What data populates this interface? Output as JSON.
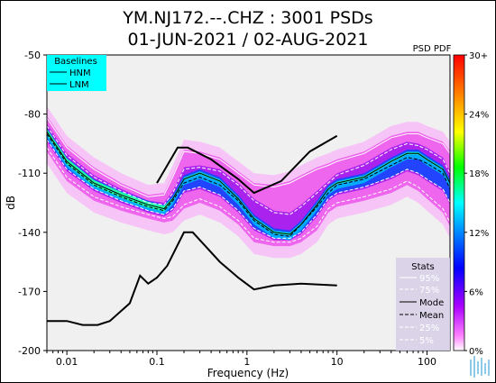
{
  "chart_data": {
    "type": "heatmap",
    "title": "YM.NJ172.--.CHZ : 3001 PSDs",
    "subtitle": "01-JUN-2021 / 02-AUG-2021",
    "xlabel": "Frequency (Hz)",
    "ylabel": "dB",
    "x_scale": "log",
    "xlim": [
      0.006,
      180
    ],
    "ylim": [
      -200,
      -50
    ],
    "x_ticks": [
      "0.01",
      "0.1",
      "1",
      "10",
      "100"
    ],
    "y_ticks": [
      "-50",
      "-80",
      "-110",
      "-140",
      "-170",
      "-200"
    ],
    "colorbar": {
      "title": "PSD PDF",
      "ticks": [
        "30+",
        "24%",
        "18%",
        "12%",
        "6%",
        "0%"
      ]
    },
    "baselines": {
      "title": "Baselines",
      "entries": [
        "HNM",
        "LNM"
      ],
      "legend_bg": "#00ffff",
      "hnm": {
        "x": [
          0.1,
          0.17,
          0.22,
          0.4,
          0.8,
          1.2,
          2.4,
          4.3,
          5,
          10
        ],
        "y": [
          -115,
          -97,
          -97,
          -103,
          -113,
          -120,
          -114,
          -102,
          -99,
          -91
        ]
      },
      "lnm": {
        "x": [
          0.006,
          0.01,
          0.015,
          0.022,
          0.03,
          0.05,
          0.065,
          0.08,
          0.1,
          0.13,
          0.2,
          0.25,
          0.33,
          0.5,
          0.8,
          1.2,
          2,
          4,
          10
        ],
        "y": [
          -185,
          -185,
          -187,
          -187,
          -185,
          -176,
          -162,
          -166,
          -163,
          -157,
          -140,
          -140,
          -146,
          -155,
          -163,
          -169,
          -167,
          -166,
          -167
        ]
      }
    },
    "stats": {
      "title": "Stats",
      "entries": [
        "95%",
        "75%",
        "Mode",
        "Mean",
        "25%",
        "5%"
      ]
    },
    "stat_curves": {
      "freq": [
        0.006,
        0.01,
        0.02,
        0.04,
        0.08,
        0.12,
        0.15,
        0.2,
        0.3,
        0.5,
        0.8,
        1.2,
        2,
        3,
        4,
        6,
        8,
        10,
        20,
        40,
        60,
        80,
        100,
        150,
        180
      ],
      "p95": [
        -82,
        -97,
        -108,
        -116,
        -122,
        -121,
        -112,
        -99,
        -100,
        -103,
        -110,
        -116,
        -117,
        -115,
        -112,
        -108,
        -106,
        -104,
        -100,
        -92,
        -90,
        -90,
        -92,
        -95,
        -100
      ],
      "p75": [
        -86,
        -101,
        -112,
        -119,
        -125,
        -126,
        -120,
        -108,
        -107,
        -109,
        -116,
        -124,
        -130,
        -131,
        -127,
        -120,
        -115,
        -111,
        -106,
        -98,
        -95,
        -96,
        -98,
        -103,
        -110
      ],
      "mode": [
        -89,
        -104,
        -115,
        -121,
        -126,
        -128,
        -123,
        -113,
        -110,
        -114,
        -123,
        -133,
        -140,
        -141,
        -136,
        -126,
        -118,
        -115,
        -112,
        -104,
        -100,
        -100,
        -103,
        -108,
        -115
      ],
      "mean": [
        -90,
        -105,
        -116,
        -122,
        -127,
        -129,
        -124,
        -115,
        -112,
        -116,
        -124,
        -134,
        -141,
        -142,
        -136,
        -127,
        -120,
        -116,
        -113,
        -106,
        -102,
        -103,
        -105,
        -110,
        -118
      ],
      "p25": [
        -93,
        -108,
        -118,
        -124,
        -129,
        -131,
        -128,
        -119,
        -117,
        -121,
        -129,
        -138,
        -143,
        -143,
        -140,
        -131,
        -123,
        -120,
        -117,
        -112,
        -108,
        -110,
        -113,
        -118,
        -125
      ],
      "p5": [
        -97,
        -112,
        -122,
        -127,
        -131,
        -133,
        -132,
        -126,
        -123,
        -127,
        -134,
        -143,
        -145,
        -145,
        -143,
        -137,
        -128,
        -125,
        -122,
        -118,
        -114,
        -117,
        -121,
        -128,
        -135
      ]
    },
    "plot_bg": "#f0f0f0"
  }
}
